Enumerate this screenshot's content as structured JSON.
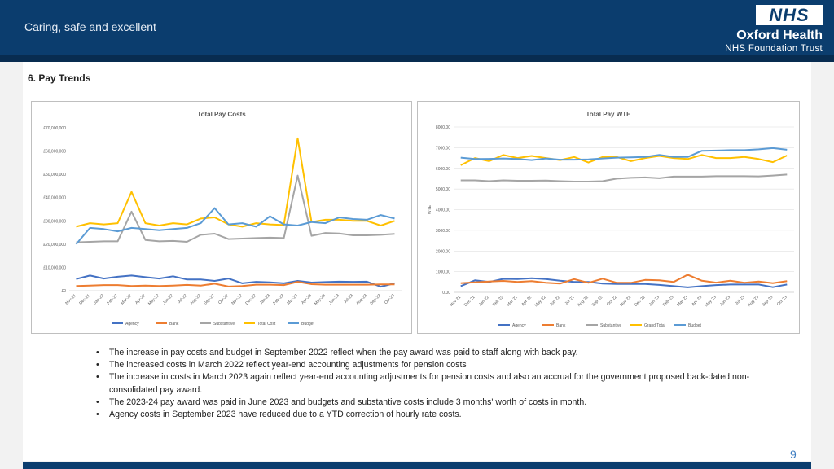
{
  "header": {
    "tagline": "Caring, safe and excellent",
    "logo_text": "NHS",
    "org_name": "Oxford Health",
    "org_sub": "NHS Foundation Trust",
    "bar_color": "#0b3d6e"
  },
  "section_title": "6. Pay Trends",
  "charts": [
    {
      "type": "line",
      "title": "Total Pay Costs",
      "ylabel": "",
      "ylim": [
        0,
        70000000
      ],
      "yticks": [
        0,
        10000000,
        20000000,
        30000000,
        40000000,
        50000000,
        60000000,
        70000000
      ],
      "ytick_labels": [
        "£0",
        "£10,000,000",
        "£20,000,000",
        "£30,000,000",
        "£40,000,000",
        "£50,000,000",
        "£60,000,000",
        "£70,000,000"
      ],
      "categories": [
        "Nov-21",
        "Dec-21",
        "Jan-22",
        "Feb-22",
        "Mar-22",
        "Apr-22",
        "May-22",
        "Jun-22",
        "Jul-22",
        "Aug-22",
        "Sep-22",
        "Oct-22",
        "Nov-22",
        "Dec-22",
        "Jan-23",
        "Feb-23",
        "Mar-23",
        "Apr-23",
        "May-23",
        "Jun-23",
        "Jul-23",
        "Aug-23",
        "Sep-23",
        "Oct-23"
      ],
      "series": [
        {
          "name": "Agency",
          "color": "#4472c4",
          "values": [
            5000000,
            6500000,
            5200000,
            6000000,
            6500000,
            5800000,
            5200000,
            6200000,
            4800000,
            4800000,
            4200000,
            5200000,
            3200000,
            3800000,
            3600000,
            3200000,
            4200000,
            3500000,
            3700000,
            3900000,
            3800000,
            3900000,
            1700000,
            3200000
          ]
        },
        {
          "name": "Bank",
          "color": "#ed7d31",
          "values": [
            2000000,
            2200000,
            2400000,
            2400000,
            2000000,
            2200000,
            2000000,
            2200000,
            2500000,
            2200000,
            3000000,
            1800000,
            2000000,
            2600000,
            2600000,
            2400000,
            3800000,
            2800000,
            2600000,
            2600000,
            2600000,
            2600000,
            2700000,
            2700000
          ]
        },
        {
          "name": "Substantive",
          "color": "#a5a5a5",
          "values": [
            20800000,
            21000000,
            21200000,
            21200000,
            34000000,
            21800000,
            21200000,
            21400000,
            21000000,
            24000000,
            24500000,
            22200000,
            22400000,
            22600000,
            22800000,
            22600000,
            49500000,
            23600000,
            24800000,
            24600000,
            23800000,
            23800000,
            24000000,
            24400000
          ]
        },
        {
          "name": "Total Cost",
          "color": "#ffc000",
          "values": [
            27500000,
            29000000,
            28500000,
            29000000,
            42500000,
            29000000,
            28000000,
            29000000,
            28500000,
            31000000,
            31500000,
            28500000,
            27500000,
            29000000,
            28500000,
            28200000,
            65500000,
            29500000,
            30500000,
            30500000,
            30000000,
            30000000,
            28000000,
            30000000
          ]
        },
        {
          "name": "Budget",
          "color": "#5b9bd5",
          "values": [
            20000000,
            27000000,
            26500000,
            25500000,
            27000000,
            26500000,
            26000000,
            26500000,
            27000000,
            29000000,
            35500000,
            28500000,
            29000000,
            27500000,
            32000000,
            28500000,
            28000000,
            29500000,
            29000000,
            31500000,
            30800000,
            30500000,
            32500000,
            31000000
          ]
        }
      ]
    },
    {
      "type": "line",
      "title": "Total Pay WTE",
      "ylabel": "WTE",
      "ylim": [
        0,
        8000
      ],
      "yticks": [
        0,
        1000,
        2000,
        3000,
        4000,
        5000,
        6000,
        7000,
        8000
      ],
      "ytick_labels": [
        "0.00",
        "1000.00",
        "2000.00",
        "3000.00",
        "4000.00",
        "5000.00",
        "6000.00",
        "7000.00",
        "8000.00"
      ],
      "categories": [
        "Nov-21",
        "Dec-21",
        "Jan-22",
        "Feb-22",
        "Mar-22",
        "Apr-22",
        "May-22",
        "Jun-22",
        "Jul-22",
        "Aug-22",
        "Sep-22",
        "Oct-22",
        "Nov-22",
        "Dec-22",
        "Jan-23",
        "Feb-23",
        "Mar-23",
        "Apr-23",
        "May-23",
        "Jun-23",
        "Jul-23",
        "Aug-23",
        "Sep-23",
        "Oct-23"
      ],
      "series": [
        {
          "name": "Agency",
          "color": "#4472c4",
          "values": [
            300,
            580,
            500,
            650,
            640,
            680,
            640,
            560,
            500,
            500,
            420,
            400,
            400,
            400,
            360,
            300,
            240,
            300,
            350,
            380,
            380,
            380,
            250,
            380
          ]
        },
        {
          "name": "Bank",
          "color": "#ed7d31",
          "values": [
            440,
            480,
            520,
            550,
            500,
            540,
            460,
            420,
            640,
            460,
            660,
            460,
            460,
            600,
            580,
            500,
            850,
            560,
            470,
            560,
            460,
            520,
            440,
            540
          ]
        },
        {
          "name": "Substantive",
          "color": "#a5a5a5",
          "values": [
            5420,
            5420,
            5380,
            5420,
            5400,
            5400,
            5410,
            5380,
            5360,
            5360,
            5380,
            5500,
            5540,
            5560,
            5520,
            5600,
            5600,
            5600,
            5620,
            5620,
            5620,
            5610,
            5650,
            5700
          ]
        },
        {
          "name": "Grand Total",
          "color": "#ffc000",
          "values": [
            6150,
            6500,
            6350,
            6650,
            6500,
            6600,
            6500,
            6400,
            6550,
            6280,
            6550,
            6550,
            6350,
            6500,
            6600,
            6500,
            6450,
            6650,
            6500,
            6500,
            6550,
            6450,
            6300,
            6620
          ]
        },
        {
          "name": "Budget",
          "color": "#5b9bd5",
          "values": [
            6520,
            6450,
            6460,
            6480,
            6450,
            6400,
            6480,
            6420,
            6420,
            6430,
            6480,
            6520,
            6530,
            6550,
            6650,
            6550,
            6550,
            6850,
            6860,
            6880,
            6880,
            6920,
            6980,
            6900
          ]
        }
      ]
    }
  ],
  "bullets": [
    "The increase in pay costs and budget in September 2022 reflect when the pay award was paid to staff along with back pay.",
    "The increased costs in March 2022 reflect year-end accounting adjustments for pension costs",
    "The increase in costs in March 2023 again reflect year-end accounting adjustments for pension costs and also an accrual for the government proposed back-dated non-consolidated pay award.",
    "The 2023-24 pay award was paid in June 2023 and budgets and substantive costs include 3 months' worth of costs in month.",
    "Agency costs in September 2023 have reduced due to a YTD correction of hourly rate costs."
  ],
  "page_number": "9"
}
